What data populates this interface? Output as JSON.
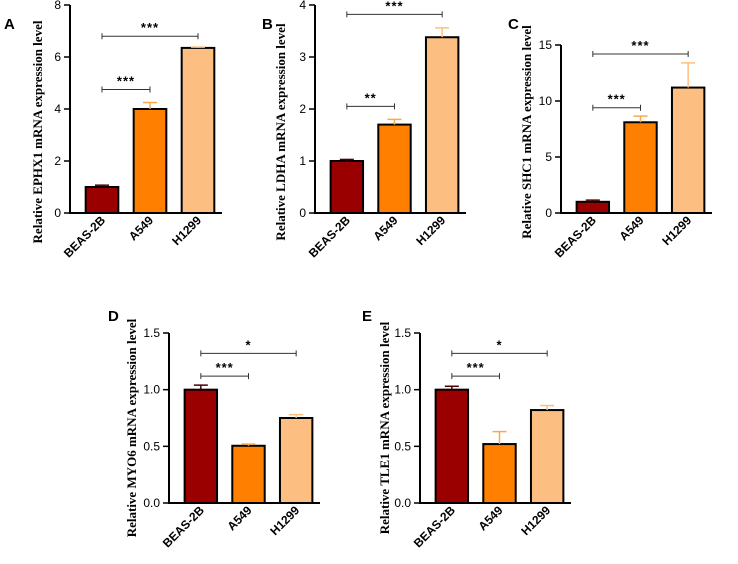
{
  "chart_data": [
    {
      "panel": "A",
      "type": "bar",
      "ylabel": "Relative EPHX1 mRNA expression level",
      "categories": [
        "BEAS-2B",
        "A549",
        "H1299"
      ],
      "values": [
        1.0,
        4.0,
        6.35
      ],
      "errors": [
        0.07,
        0.25,
        0.03
      ],
      "ylim": [
        0,
        8
      ],
      "yticks": [
        0,
        2,
        4,
        6,
        8
      ],
      "ytick_labels": [
        "0",
        "2",
        "4",
        "6",
        "8"
      ],
      "significance": [
        {
          "from": 0,
          "to": 1,
          "y": 4.75,
          "label": "***"
        },
        {
          "from": 0,
          "to": 2,
          "y": 6.8,
          "label": "***"
        }
      ]
    },
    {
      "panel": "B",
      "type": "bar",
      "ylabel": "Relative LDHA mRNA expression level",
      "categories": [
        "BEAS-2B",
        "A549",
        "H1299"
      ],
      "values": [
        1.0,
        1.7,
        3.38
      ],
      "errors": [
        0.03,
        0.1,
        0.18
      ],
      "ylim": [
        0,
        4
      ],
      "yticks": [
        0,
        1,
        2,
        3,
        4
      ],
      "ytick_labels": [
        "0",
        "1",
        "2",
        "3",
        "4"
      ],
      "significance": [
        {
          "from": 0,
          "to": 1,
          "y": 2.05,
          "label": "**"
        },
        {
          "from": 0,
          "to": 2,
          "y": 3.82,
          "label": "***"
        }
      ]
    },
    {
      "panel": "C",
      "type": "bar",
      "ylabel": "Relative SHC1 mRNA expression level",
      "categories": [
        "BEAS-2B",
        "A549",
        "H1299"
      ],
      "values": [
        1.0,
        8.1,
        11.2
      ],
      "errors": [
        0.15,
        0.55,
        2.2
      ],
      "ylim": [
        0,
        15
      ],
      "yticks": [
        0,
        5,
        10,
        15
      ],
      "ytick_labels": [
        "0",
        "5",
        "10",
        "15"
      ],
      "significance": [
        {
          "from": 0,
          "to": 1,
          "y": 9.4,
          "label": "***"
        },
        {
          "from": 0,
          "to": 2,
          "y": 14.2,
          "label": "***"
        }
      ]
    },
    {
      "panel": "D",
      "type": "bar",
      "ylabel": "Relative MYO6 mRNA expression level",
      "categories": [
        "BEAS-2B",
        "A549",
        "H1299"
      ],
      "values": [
        1.0,
        0.505,
        0.75
      ],
      "errors": [
        0.04,
        0.015,
        0.03
      ],
      "ylim": [
        0,
        1.5
      ],
      "yticks": [
        0,
        0.5,
        1.0,
        1.5
      ],
      "ytick_labels": [
        "0.0",
        "0.5",
        "1.0",
        "1.5"
      ],
      "significance": [
        {
          "from": 0,
          "to": 1,
          "y": 1.12,
          "label": "***"
        },
        {
          "from": 0,
          "to": 2,
          "y": 1.32,
          "label": "*"
        }
      ]
    },
    {
      "panel": "E",
      "type": "bar",
      "ylabel": "Relative TLE1 mRNA expression level",
      "categories": [
        "BEAS-2B",
        "A549",
        "H1299"
      ],
      "values": [
        1.0,
        0.52,
        0.82
      ],
      "errors": [
        0.03,
        0.11,
        0.04
      ],
      "ylim": [
        0,
        1.5
      ],
      "yticks": [
        0,
        0.5,
        1.0,
        1.5
      ],
      "ytick_labels": [
        "0.0",
        "0.5",
        "1.0",
        "1.5"
      ],
      "significance": [
        {
          "from": 0,
          "to": 1,
          "y": 1.12,
          "label": "***"
        },
        {
          "from": 0,
          "to": 2,
          "y": 1.32,
          "label": "*"
        }
      ]
    }
  ],
  "colors": {
    "bars": [
      "#9b0000",
      "#ff7f00",
      "#fdbe81"
    ],
    "errorbars": [
      "#4d0000",
      "#f7a84a",
      "#fdbe81"
    ],
    "axis": "#000000"
  }
}
